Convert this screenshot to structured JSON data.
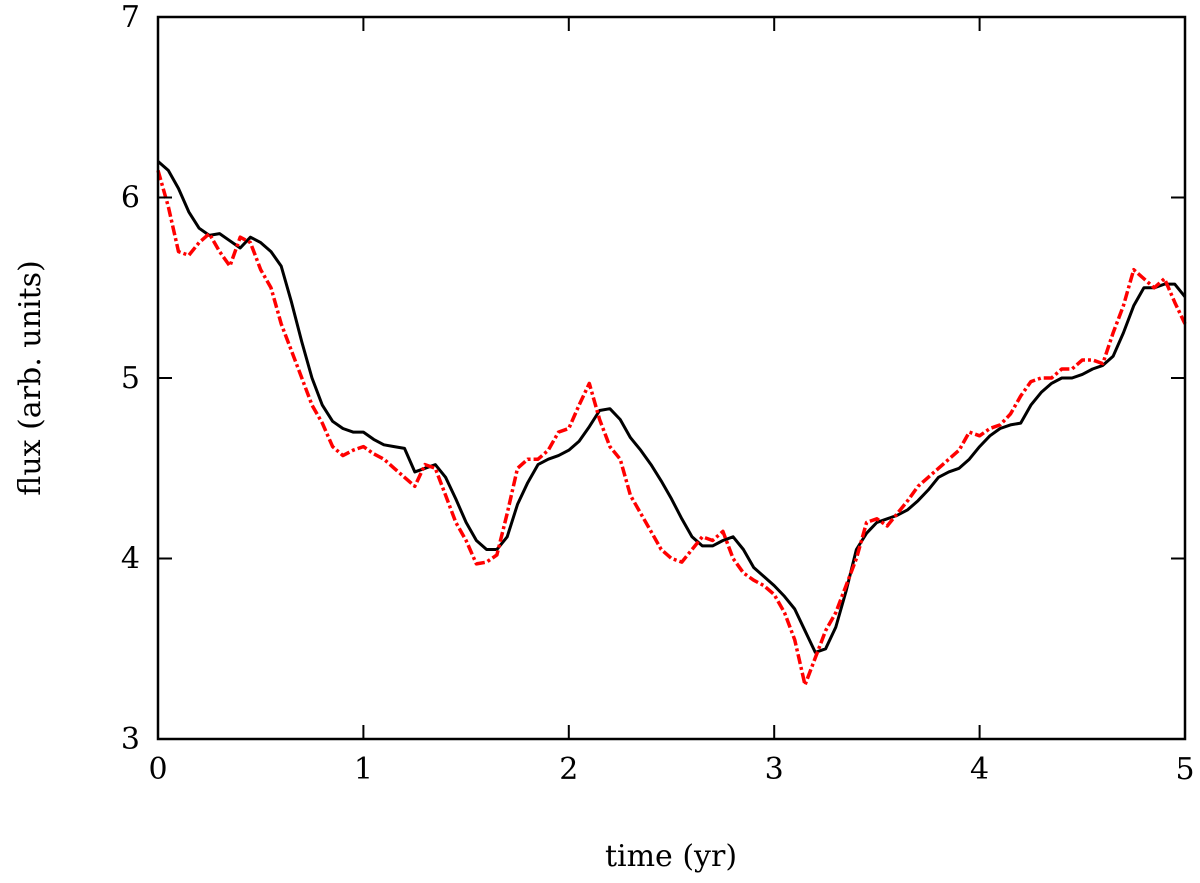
{
  "chart_data": {
    "type": "line",
    "title": "",
    "xlabel": "time (yr)",
    "ylabel": "flux (arb. units)",
    "xlim": [
      0,
      5
    ],
    "ylim": [
      3,
      7
    ],
    "xticks": [
      0,
      1,
      2,
      3,
      4,
      5
    ],
    "yticks": [
      3,
      4,
      5,
      6,
      7
    ],
    "grid": false,
    "legend": "none",
    "series": [
      {
        "color": "#000000",
        "style": "solid",
        "x": [
          0,
          0.05,
          0.1,
          0.15,
          0.2,
          0.25,
          0.3,
          0.35,
          0.4,
          0.45,
          0.5,
          0.55,
          0.6,
          0.65,
          0.7,
          0.75,
          0.8,
          0.85,
          0.9,
          0.95,
          1.0,
          1.05,
          1.1,
          1.15,
          1.2,
          1.25,
          1.3,
          1.35,
          1.4,
          1.45,
          1.5,
          1.55,
          1.6,
          1.65,
          1.7,
          1.75,
          1.8,
          1.85,
          1.9,
          1.95,
          2.0,
          2.05,
          2.1,
          2.15,
          2.2,
          2.25,
          2.3,
          2.35,
          2.4,
          2.45,
          2.5,
          2.55,
          2.6,
          2.65,
          2.7,
          2.75,
          2.8,
          2.85,
          2.9,
          2.95,
          3.0,
          3.05,
          3.1,
          3.15,
          3.2,
          3.25,
          3.3,
          3.35,
          3.4,
          3.45,
          3.5,
          3.55,
          3.6,
          3.65,
          3.7,
          3.75,
          3.8,
          3.85,
          3.9,
          3.95,
          4.0,
          4.05,
          4.1,
          4.15,
          4.2,
          4.25,
          4.3,
          4.35,
          4.4,
          4.45,
          4.5,
          4.55,
          4.6,
          4.65,
          4.7,
          4.75,
          4.8,
          4.85,
          4.9,
          4.95,
          5.0
        ],
        "y": [
          6.2,
          6.15,
          6.05,
          5.92,
          5.83,
          5.79,
          5.8,
          5.76,
          5.72,
          5.78,
          5.75,
          5.7,
          5.62,
          5.42,
          5.2,
          5.0,
          4.85,
          4.76,
          4.72,
          4.7,
          4.7,
          4.66,
          4.63,
          4.62,
          4.61,
          4.48,
          4.5,
          4.52,
          4.45,
          4.33,
          4.2,
          4.1,
          4.05,
          4.05,
          4.12,
          4.3,
          4.42,
          4.52,
          4.55,
          4.57,
          4.6,
          4.65,
          4.73,
          4.82,
          4.83,
          4.77,
          4.67,
          4.6,
          4.52,
          4.43,
          4.33,
          4.22,
          4.12,
          4.07,
          4.07,
          4.1,
          4.12,
          4.05,
          3.95,
          3.9,
          3.85,
          3.79,
          3.72,
          3.6,
          3.48,
          3.5,
          3.62,
          3.82,
          4.05,
          4.14,
          4.2,
          4.22,
          4.24,
          4.27,
          4.32,
          4.38,
          4.45,
          4.48,
          4.5,
          4.55,
          4.62,
          4.68,
          4.72,
          4.74,
          4.75,
          4.85,
          4.92,
          4.97,
          5.0,
          5.0,
          5.02,
          5.05,
          5.07,
          5.12,
          5.25,
          5.4,
          5.5,
          5.5,
          5.52,
          5.52,
          5.45
        ]
      },
      {
        "color": "#ff0000",
        "style": "dashed",
        "x": [
          0,
          0.05,
          0.1,
          0.15,
          0.2,
          0.25,
          0.3,
          0.35,
          0.4,
          0.45,
          0.5,
          0.55,
          0.6,
          0.65,
          0.7,
          0.75,
          0.8,
          0.85,
          0.9,
          0.95,
          1.0,
          1.05,
          1.1,
          1.15,
          1.2,
          1.25,
          1.3,
          1.35,
          1.4,
          1.45,
          1.5,
          1.55,
          1.6,
          1.65,
          1.7,
          1.75,
          1.8,
          1.85,
          1.9,
          1.95,
          2.0,
          2.05,
          2.1,
          2.15,
          2.2,
          2.25,
          2.3,
          2.35,
          2.4,
          2.45,
          2.5,
          2.55,
          2.6,
          2.65,
          2.7,
          2.75,
          2.8,
          2.85,
          2.9,
          2.95,
          3.0,
          3.05,
          3.1,
          3.15,
          3.2,
          3.25,
          3.3,
          3.35,
          3.4,
          3.45,
          3.5,
          3.55,
          3.6,
          3.65,
          3.7,
          3.75,
          3.8,
          3.85,
          3.9,
          3.95,
          4.0,
          4.05,
          4.1,
          4.15,
          4.2,
          4.25,
          4.3,
          4.35,
          4.4,
          4.45,
          4.5,
          4.55,
          4.6,
          4.65,
          4.7,
          4.75,
          4.8,
          4.85,
          4.9,
          4.95,
          5.0
        ],
        "y": [
          6.15,
          5.95,
          5.7,
          5.68,
          5.75,
          5.8,
          5.7,
          5.62,
          5.78,
          5.75,
          5.6,
          5.5,
          5.3,
          5.15,
          5.0,
          4.85,
          4.75,
          4.62,
          4.57,
          4.6,
          4.62,
          4.58,
          4.55,
          4.5,
          4.45,
          4.4,
          4.52,
          4.5,
          4.35,
          4.2,
          4.1,
          3.97,
          3.98,
          4.02,
          4.25,
          4.5,
          4.55,
          4.55,
          4.6,
          4.7,
          4.72,
          4.85,
          4.97,
          4.77,
          4.62,
          4.55,
          4.35,
          4.25,
          4.15,
          4.05,
          4.0,
          3.98,
          4.05,
          4.12,
          4.1,
          4.15,
          4.0,
          3.92,
          3.88,
          3.85,
          3.8,
          3.7,
          3.55,
          3.3,
          3.45,
          3.6,
          3.7,
          3.85,
          4.0,
          4.2,
          4.22,
          4.18,
          4.25,
          4.32,
          4.4,
          4.45,
          4.5,
          4.55,
          4.6,
          4.7,
          4.68,
          4.72,
          4.74,
          4.8,
          4.9,
          4.98,
          5.0,
          5.0,
          5.05,
          5.05,
          5.1,
          5.1,
          5.08,
          5.25,
          5.4,
          5.6,
          5.55,
          5.5,
          5.55,
          5.42,
          5.3
        ]
      }
    ]
  }
}
